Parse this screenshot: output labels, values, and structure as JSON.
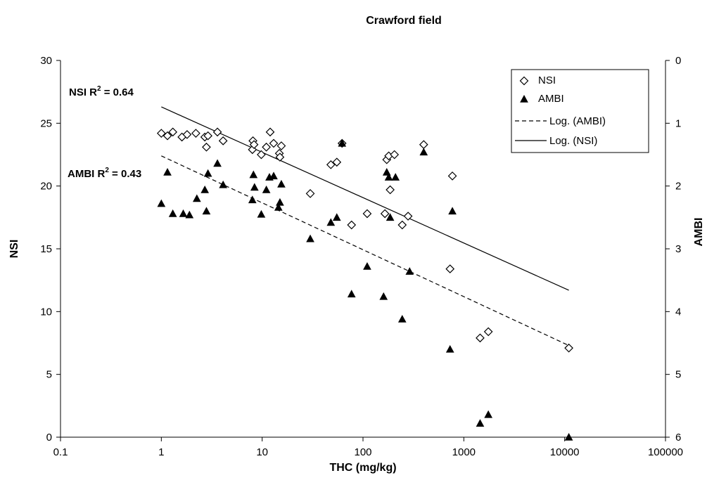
{
  "chart_data": {
    "type": "scatter",
    "title": "Crawford field",
    "xlabel": "THC (mg/kg)",
    "ylabel": "NSI",
    "y2label": "AMBI",
    "x_scale": "log",
    "xlim": [
      0.1,
      100000
    ],
    "ylim": [
      0,
      30
    ],
    "y2lim_inverted": [
      0,
      6
    ],
    "x_ticks": [
      "0.1",
      "1",
      "10",
      "100",
      "1000",
      "10000",
      "100000"
    ],
    "y_ticks": [
      "0",
      "5",
      "10",
      "15",
      "20",
      "25",
      "30"
    ],
    "y2_ticks": [
      "0",
      "1",
      "2",
      "3",
      "4",
      "5",
      "6"
    ],
    "grid": false,
    "legend_position": "top-right",
    "legend": [
      "NSI",
      "AMBI",
      "Log. (AMBI)",
      "Log. (NSI)"
    ],
    "annotations": {
      "nsi_r2_prefix": "NSI R",
      "ambi_r2_prefix": "AMBI R",
      "sup": "2",
      "nsi_r2_value": " = 0.64",
      "ambi_r2_value": " = 0.43"
    },
    "series": [
      {
        "name": "NSI",
        "axis": "left",
        "marker": "diamond-open",
        "points": [
          [
            1.0,
            24.2
          ],
          [
            1.15,
            24.0
          ],
          [
            1.3,
            24.3
          ],
          [
            1.6,
            23.9
          ],
          [
            1.8,
            24.1
          ],
          [
            2.2,
            24.2
          ],
          [
            2.7,
            23.9
          ],
          [
            2.8,
            23.1
          ],
          [
            2.9,
            24.0
          ],
          [
            3.6,
            24.3
          ],
          [
            4.1,
            23.6
          ],
          [
            8.0,
            22.9
          ],
          [
            8.1,
            23.6
          ],
          [
            8.3,
            23.3
          ],
          [
            9.8,
            22.5
          ],
          [
            11.0,
            23.1
          ],
          [
            12.0,
            24.3
          ],
          [
            13.0,
            23.4
          ],
          [
            14.8,
            22.6
          ],
          [
            15.0,
            22.3
          ],
          [
            15.5,
            23.2
          ],
          [
            30,
            19.4
          ],
          [
            48,
            21.7
          ],
          [
            55,
            21.9
          ],
          [
            62,
            23.4
          ],
          [
            77,
            16.9
          ],
          [
            110,
            17.8
          ],
          [
            165,
            17.8
          ],
          [
            172,
            22.1
          ],
          [
            180,
            22.4
          ],
          [
            186,
            19.7
          ],
          [
            205,
            22.5
          ],
          [
            245,
            16.9
          ],
          [
            280,
            17.6
          ],
          [
            400,
            23.3
          ],
          [
            730,
            13.4
          ],
          [
            770,
            20.8
          ],
          [
            1450,
            7.9
          ],
          [
            1750,
            8.4
          ],
          [
            11000,
            7.1
          ]
        ]
      },
      {
        "name": "AMBI",
        "axis": "right",
        "marker": "triangle-filled",
        "points": [
          [
            1.0,
            2.28
          ],
          [
            1.15,
            1.78
          ],
          [
            1.3,
            2.44
          ],
          [
            1.65,
            2.44
          ],
          [
            1.9,
            2.46
          ],
          [
            2.25,
            2.2
          ],
          [
            2.7,
            2.06
          ],
          [
            2.8,
            2.4
          ],
          [
            2.9,
            1.8
          ],
          [
            3.6,
            1.64
          ],
          [
            4.1,
            1.98
          ],
          [
            8.0,
            2.22
          ],
          [
            8.2,
            1.82
          ],
          [
            8.4,
            2.02
          ],
          [
            9.8,
            2.45
          ],
          [
            11.0,
            2.06
          ],
          [
            11.8,
            1.86
          ],
          [
            13.0,
            1.84
          ],
          [
            14.5,
            2.34
          ],
          [
            15.0,
            2.26
          ],
          [
            15.5,
            1.97
          ],
          [
            30,
            2.84
          ],
          [
            48,
            2.58
          ],
          [
            55,
            2.5
          ],
          [
            62,
            1.32
          ],
          [
            77,
            3.72
          ],
          [
            110,
            3.28
          ],
          [
            160,
            3.76
          ],
          [
            172,
            1.78
          ],
          [
            180,
            1.86
          ],
          [
            186,
            2.5
          ],
          [
            210,
            1.86
          ],
          [
            245,
            4.12
          ],
          [
            290,
            3.36
          ],
          [
            400,
            1.46
          ],
          [
            730,
            4.6
          ],
          [
            770,
            2.4
          ],
          [
            1450,
            5.78
          ],
          [
            1750,
            5.64
          ],
          [
            11000,
            6.0
          ]
        ]
      },
      {
        "name": "Log. (AMBI)",
        "axis": "left",
        "style": "dashed",
        "points": [
          [
            1,
            22.4
          ],
          [
            11000,
            7.3
          ]
        ]
      },
      {
        "name": "Log. (NSI)",
        "axis": "left",
        "style": "solid",
        "points": [
          [
            1,
            26.3
          ],
          [
            11000,
            11.7
          ]
        ]
      }
    ]
  }
}
